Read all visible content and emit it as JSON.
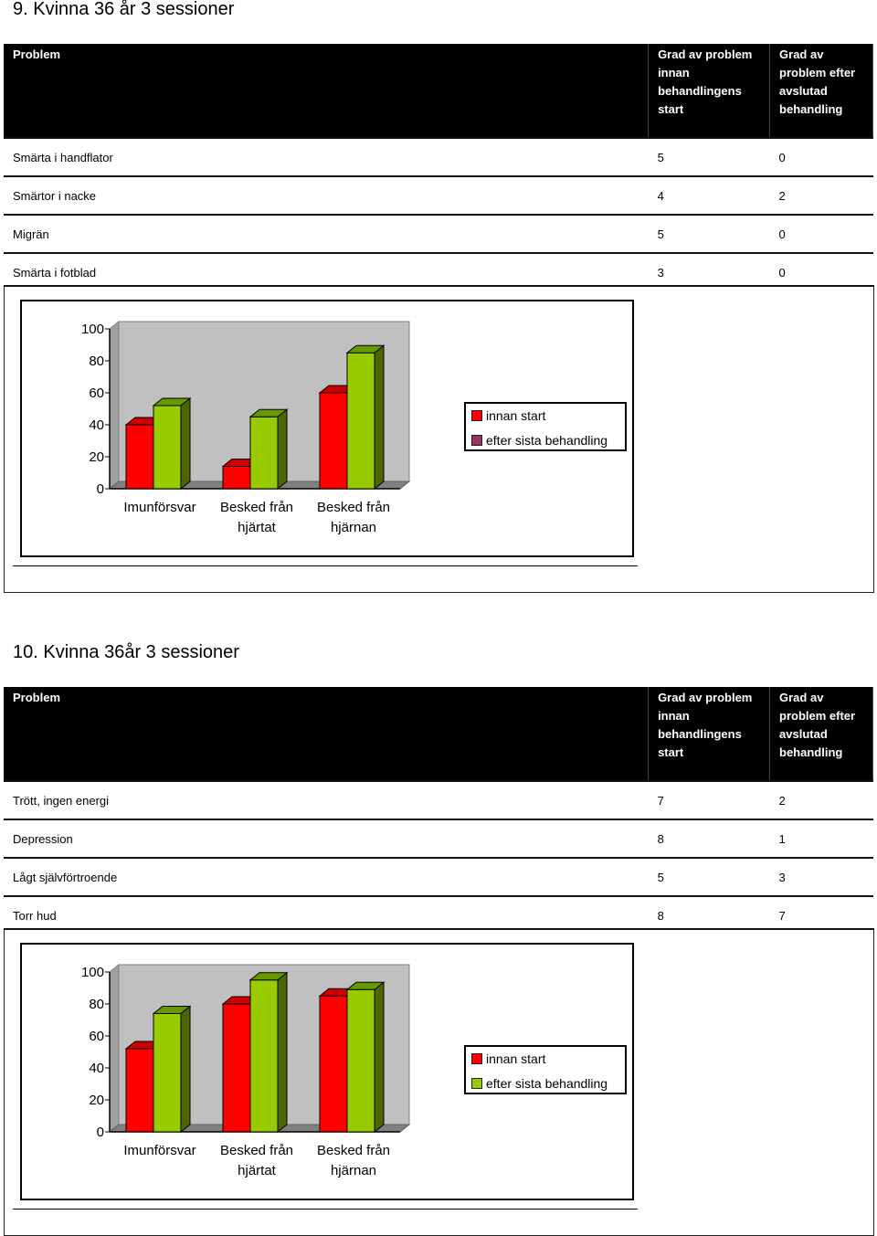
{
  "sections": [
    {
      "title": "9. Kvinna 36 år 3 sessioner",
      "headers": [
        "Problem",
        "Grad av problem innan behandlingens start",
        "Grad av problem efter avslutad behandling"
      ],
      "rows": [
        [
          "Smärta i handflator",
          "5",
          "0"
        ],
        [
          "Smärtor i nacke",
          "4",
          "2"
        ],
        [
          "Migrän",
          "5",
          "0"
        ],
        [
          "Smärta i fotblad",
          "3",
          "0"
        ]
      ],
      "colors": {
        "innan": "#ff0000",
        "efter": "#99cc00",
        "efter_legend": "#993366"
      }
    },
    {
      "title": "10. Kvinna 36år  3 sessioner",
      "headers": [
        "Problem",
        "Grad av problem innan behandlingens start",
        "Grad av problem efter avslutad behandling"
      ],
      "rows": [
        [
          "Trött, ingen energi",
          "7",
          "2"
        ],
        [
          "Depression",
          "8",
          "1"
        ],
        [
          "Lågt självförtroende",
          "5",
          "3"
        ],
        [
          "Torr hud",
          "8",
          "7"
        ]
      ],
      "colors": {
        "innan": "#ff0000",
        "efter": "#99cc00",
        "efter_legend": "#99cc00"
      }
    }
  ],
  "chart_data": [
    {
      "type": "bar",
      "categories": [
        "Imunförsvar",
        "Besked från hjärtat",
        "Besked från hjärnan"
      ],
      "series": [
        {
          "name": "innan start",
          "values": [
            40,
            14,
            60
          ]
        },
        {
          "name": "efter sista behandling",
          "values": [
            52,
            45,
            85
          ]
        }
      ],
      "yticks": [
        "0",
        "20",
        "40",
        "60",
        "80",
        "100"
      ],
      "ylim": [
        0,
        100
      ],
      "legend": "right"
    },
    {
      "type": "bar",
      "categories": [
        "Imunförsvar",
        "Besked från hjärtat",
        "Besked från hjärnan"
      ],
      "series": [
        {
          "name": "innan start",
          "values": [
            52,
            80,
            85
          ]
        },
        {
          "name": "efter sista behandling",
          "values": [
            74,
            95,
            89
          ]
        }
      ],
      "yticks": [
        "0",
        "20",
        "40",
        "60",
        "80",
        "100"
      ],
      "ylim": [
        0,
        100
      ],
      "legend": "right"
    }
  ]
}
